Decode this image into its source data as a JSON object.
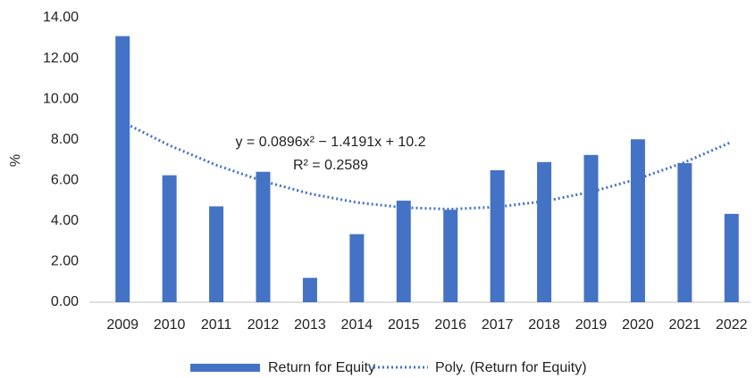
{
  "chart_data": {
    "type": "bar",
    "y_label": "%",
    "categories": [
      "2009",
      "2010",
      "2011",
      "2012",
      "2013",
      "2014",
      "2015",
      "2016",
      "2017",
      "2018",
      "2019",
      "2020",
      "2021",
      "2022"
    ],
    "series": [
      {
        "name": "Return for Equity",
        "color": "#4472c4",
        "values": [
          13.1,
          6.25,
          4.72,
          6.42,
          1.2,
          3.35,
          5.0,
          4.55,
          6.5,
          6.9,
          7.25,
          8.02,
          6.85,
          4.35
        ]
      },
      {
        "name": "Poly. (Return for Equity)",
        "type": "line",
        "dashed": true,
        "color": "#4472c4",
        "values": [
          8.87,
          7.72,
          6.75,
          5.96,
          5.34,
          4.91,
          4.66,
          4.58,
          4.69,
          4.97,
          5.43,
          6.07,
          6.89,
          7.89
        ]
      }
    ],
    "annotations": [
      "y = 0.0896x² − 1.4191x + 10.2",
      "R² = 0.2589"
    ],
    "ylim": [
      0,
      14
    ],
    "yticks": [
      {
        "value": 0,
        "label": "0.00"
      },
      {
        "value": 2,
        "label": "2.00"
      },
      {
        "value": 4,
        "label": "4.00"
      },
      {
        "value": 6,
        "label": "6.00"
      },
      {
        "value": 8,
        "label": "8.00"
      },
      {
        "value": 10,
        "label": "10.00"
      },
      {
        "value": 12,
        "label": "12.00"
      },
      {
        "value": 14,
        "label": "14.00"
      }
    ],
    "grid": false,
    "legend": "bottom"
  }
}
